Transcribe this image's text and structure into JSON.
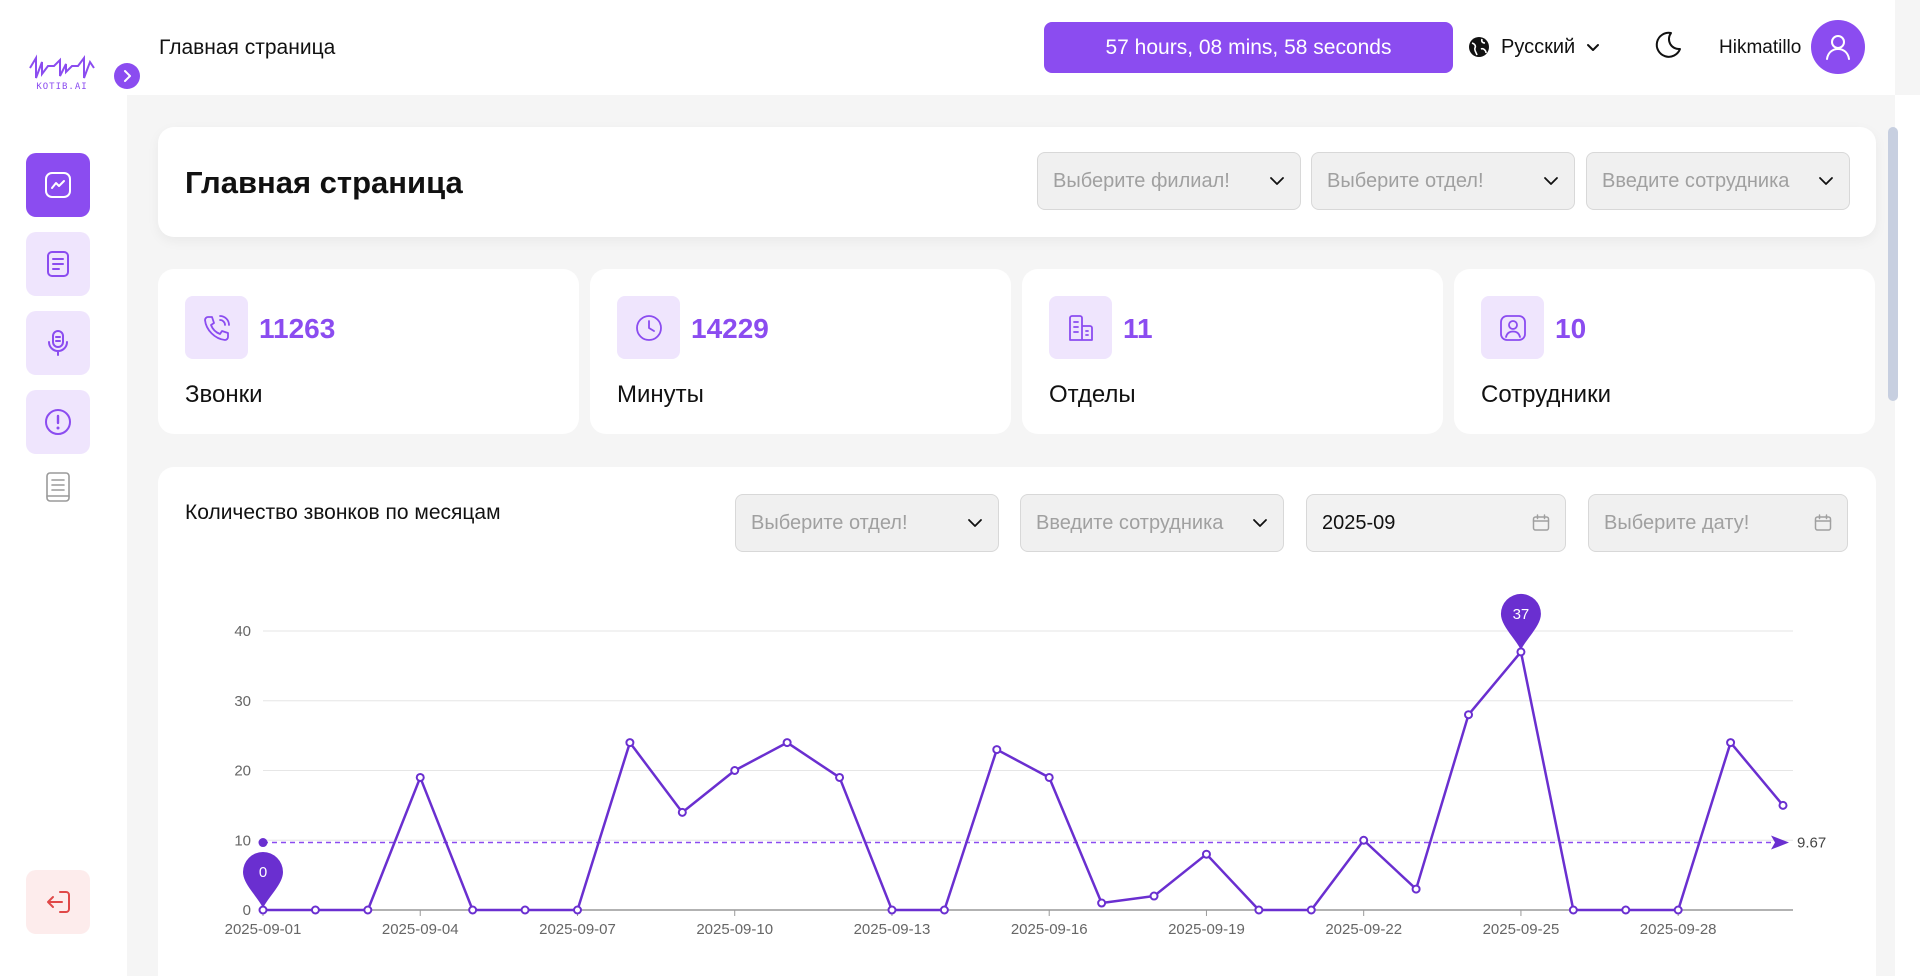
{
  "app": {
    "logo_text": "KOTIB.AI"
  },
  "header": {
    "breadcrumb": "Главная страница",
    "timer": "57 hours, 08 mins, 58 seconds",
    "language": "Русский",
    "username": "Hikmatillo"
  },
  "page": {
    "title": "Главная страница",
    "filters": [
      {
        "placeholder": "Выберите филиал!"
      },
      {
        "placeholder": "Выберите отдел!"
      },
      {
        "placeholder": "Введите сотрудника"
      }
    ]
  },
  "stats": [
    {
      "value": "11263",
      "label": "Звонки",
      "icon": "phone-icon"
    },
    {
      "value": "14229",
      "label": "Минуты",
      "icon": "clock-icon"
    },
    {
      "value": "11",
      "label": "Отделы",
      "icon": "building-icon"
    },
    {
      "value": "10",
      "label": "Сотрудники",
      "icon": "user-badge-icon"
    }
  ],
  "chart_section": {
    "title": "Количество звонков по месяцам",
    "department_placeholder": "Выберите отдел!",
    "employee_placeholder": "Введите сотрудника",
    "month_value": "2025-09",
    "date_placeholder": "Выберите дату!"
  },
  "colors": {
    "accent": "#8b4cf0",
    "line": "#6a2fd0",
    "accent_light": "#efe5fd"
  },
  "chart_data": {
    "type": "line",
    "x": [
      "2025-09-01",
      "2025-09-02",
      "2025-09-03",
      "2025-09-04",
      "2025-09-05",
      "2025-09-06",
      "2025-09-07",
      "2025-09-08",
      "2025-09-09",
      "2025-09-10",
      "2025-09-11",
      "2025-09-12",
      "2025-09-13",
      "2025-09-14",
      "2025-09-15",
      "2025-09-16",
      "2025-09-17",
      "2025-09-18",
      "2025-09-19",
      "2025-09-20",
      "2025-09-21",
      "2025-09-22",
      "2025-09-23",
      "2025-09-24",
      "2025-09-25",
      "2025-09-26",
      "2025-09-27",
      "2025-09-28",
      "2025-09-29",
      "2025-09-30"
    ],
    "x_tick_labels": [
      "2025-09-01",
      "2025-09-04",
      "2025-09-07",
      "2025-09-10",
      "2025-09-13",
      "2025-09-16",
      "2025-09-19",
      "2025-09-22",
      "2025-09-25",
      "2025-09-28"
    ],
    "values": [
      0,
      0,
      0,
      19,
      0,
      0,
      0,
      24,
      14,
      20,
      24,
      19,
      0,
      0,
      23,
      19,
      1,
      2,
      8,
      0,
      0,
      10,
      3,
      28,
      37,
      0,
      0,
      0,
      24,
      15
    ],
    "ylim": [
      0,
      40
    ],
    "y_ticks": [
      0,
      10,
      20,
      30,
      40
    ],
    "average": 9.67,
    "average_label": "9.67",
    "min_marker": {
      "label": "0"
    },
    "max_marker": {
      "label": "37"
    },
    "grid": true
  }
}
